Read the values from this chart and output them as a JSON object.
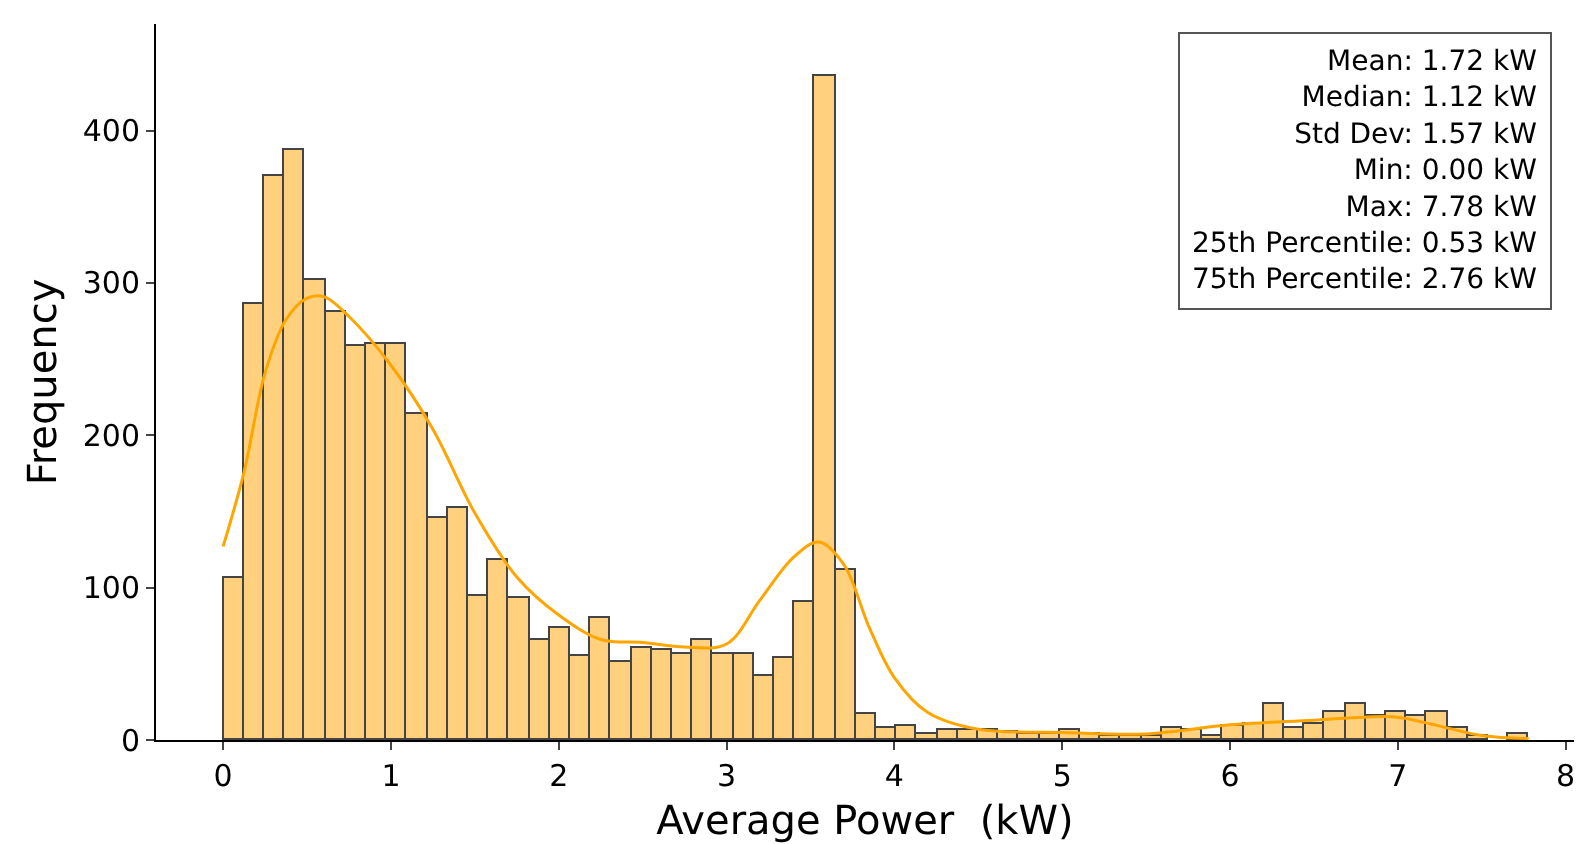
{
  "chart_data": {
    "type": "histogram",
    "xlabel": "Average Power  (kW)",
    "ylabel": "Frequency",
    "bins": [
      0,
      0.122,
      0.243,
      0.365,
      0.486,
      0.608,
      0.729,
      0.851,
      0.973,
      1.094,
      1.216,
      1.337,
      1.459,
      1.58,
      1.702,
      1.823,
      1.945,
      2.067,
      2.188,
      2.31,
      2.431,
      2.553,
      2.674,
      2.796,
      2.918,
      3.039,
      3.161,
      3.282,
      3.404,
      3.525,
      3.647,
      3.768,
      3.89,
      4.012,
      4.133,
      4.255,
      4.376,
      4.498,
      4.619,
      4.741,
      4.863,
      4.984,
      5.106,
      5.227,
      5.349,
      5.47,
      5.592,
      5.713,
      5.835,
      5.957,
      6.078,
      6.2,
      6.321,
      6.443,
      6.564,
      6.686,
      6.808,
      6.929,
      7.051,
      7.172,
      7.294,
      7.415,
      7.537,
      7.658,
      7.78
    ],
    "series": [
      {
        "color": "#ffd17f",
        "values": [
          107,
          286,
          370,
          387,
          302,
          281,
          259,
          260,
          260,
          214,
          146,
          152,
          95,
          118,
          93,
          66,
          74,
          55,
          80,
          51,
          61,
          59,
          57,
          65,
          57,
          57,
          42,
          54,
          90,
          436,
          111,
          17,
          8,
          9,
          4,
          7,
          7,
          6,
          5,
          4,
          4,
          6,
          4,
          3,
          3,
          3,
          8,
          6,
          2,
          9,
          11,
          23,
          8,
          11,
          18,
          24,
          16,
          18,
          16,
          18,
          8,
          2,
          0,
          4
        ]
      },
      {
        "type": "line",
        "color": "#ffa500",
        "x": [
          0,
          0.125,
          0.25,
          0.375,
          0.5,
          0.6,
          0.75,
          1.0,
          1.25,
          1.5,
          1.75,
          2.0,
          2.25,
          2.5,
          2.75,
          3.0,
          3.2,
          3.4,
          3.55,
          3.7,
          3.85,
          4.0,
          4.2,
          4.5,
          5.0,
          5.5,
          6.0,
          6.5,
          6.8,
          7.0,
          7.5,
          7.78
        ],
        "values": [
          127,
          176,
          241,
          276,
          290,
          291,
          278,
          246,
          204,
          149,
          107,
          82,
          66,
          64,
          61,
          63,
          92,
          120,
          130,
          115,
          74,
          41,
          18,
          7,
          5,
          4,
          10,
          13,
          15,
          15,
          3,
          1
        ]
      }
    ],
    "xlim": [
      -0.4,
      8.05
    ],
    "xticks": [
      0,
      1,
      2,
      3,
      4,
      5,
      6,
      7,
      8
    ],
    "ylim": [
      0,
      470
    ],
    "yticks": [
      0,
      100,
      200,
      300,
      400
    ],
    "annotations": [
      "Mean: 1.72 kW\nMedian: 1.12 kW\nStd Dev: 1.57 kW\nMin: 0.00 kW\nMax: 7.78 kW\n25th Percentile: 0.53 kW\n75th Percentile: 2.76 kW"
    ]
  }
}
